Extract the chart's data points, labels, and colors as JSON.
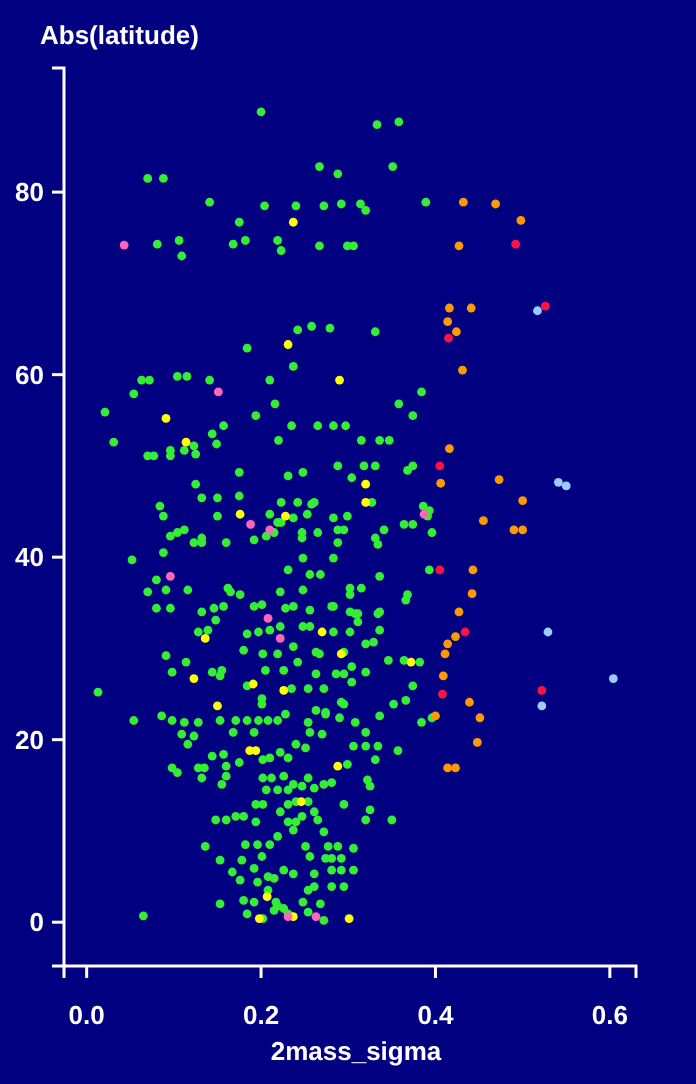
{
  "chart_data": {
    "type": "scatter",
    "title": "Abs(latitude)",
    "xlabel": "2mass_sigma",
    "xlim": [
      -0.026,
      0.63
    ],
    "ylim": [
      -4.8,
      93.6
    ],
    "xticks": [
      {
        "value": 0,
        "label": "0.0"
      },
      {
        "value": 0.2,
        "label": "0.2"
      },
      {
        "value": 0.4,
        "label": "0.4"
      },
      {
        "value": 0.6,
        "label": "0.6"
      }
    ],
    "yticks": [
      0,
      20,
      40,
      60,
      80
    ],
    "marker": "circle",
    "series": [
      {
        "color": "#33ee33",
        "x": [
          0.2,
          0.333,
          0.358,
          0.267,
          0.288,
          0.351,
          0.07,
          0.088,
          0.141,
          0.204,
          0.24,
          0.272,
          0.292,
          0.314,
          0.32,
          0.389,
          0.175,
          0.081,
          0.106,
          0.109,
          0.168,
          0.182,
          0.219,
          0.223,
          0.267,
          0.299,
          0.306,
          0.242,
          0.258,
          0.279,
          0.331,
          0.184,
          0.237,
          0.063,
          0.072,
          0.104,
          0.115,
          0.141,
          0.21,
          0.054,
          0.384,
          0.021,
          0.216,
          0.358,
          0.194,
          0.374,
          0.157,
          0.235,
          0.265,
          0.283,
          0.297,
          0.031,
          0.144,
          0.149,
          0.22,
          0.315,
          0.336,
          0.347,
          0.07,
          0.077,
          0.096,
          0.096,
          0.112,
          0.123,
          0.125,
          0.288,
          0.318,
          0.331,
          0.368,
          0.374,
          0.175,
          0.231,
          0.248,
          0.304,
          0.125,
          0.132,
          0.15,
          0.175,
          0.084,
          0.088,
          0.223,
          0.242,
          0.258,
          0.261,
          0.15,
          0.21,
          0.223,
          0.237,
          0.253,
          0.283,
          0.299,
          0.327,
          0.386,
          0.393,
          0.391,
          0.096,
          0.104,
          0.112,
          0.123,
          0.132,
          0.132,
          0.16,
          0.192,
          0.206,
          0.215,
          0.219,
          0.247,
          0.247,
          0.265,
          0.288,
          0.295,
          0.288,
          0.331,
          0.334,
          0.341,
          0.364,
          0.374,
          0.396,
          0.052,
          0.088,
          0.248,
          0.283,
          0.393,
          0.08,
          0.07,
          0.091,
          0.116,
          0.162,
          0.176,
          0.165,
          0.192,
          0.201,
          0.222,
          0.231,
          0.256,
          0.268,
          0.248,
          0.302,
          0.315,
          0.302,
          0.283,
          0.336,
          0.368,
          0.366,
          0.08,
          0.096,
          0.132,
          0.146,
          0.157,
          0.256,
          0.308,
          0.336,
          0.228,
          0.237,
          0.281,
          0.302,
          0.311,
          0.334,
          0.128,
          0.139,
          0.148,
          0.184,
          0.197,
          0.21,
          0.222,
          0.248,
          0.256,
          0.283,
          0.302,
          0.311,
          0.336,
          0.32,
          0.329,
          0.382,
          0.346,
          0.364,
          0.091,
          0.114,
          0.18,
          0.202,
          0.219,
          0.237,
          0.263,
          0.267,
          0.295,
          0.098,
          0.144,
          0.155,
          0.153,
          0.205,
          0.226,
          0.242,
          0.263,
          0.286,
          0.295,
          0.304,
          0.304,
          0.32,
          0.374,
          0.013,
          0.184,
          0.201,
          0.201,
          0.235,
          0.254,
          0.272,
          0.263,
          0.274,
          0.292,
          0.295,
          0.352,
          0.366,
          0.054,
          0.086,
          0.098,
          0.112,
          0.128,
          0.153,
          0.171,
          0.184,
          0.197,
          0.208,
          0.219,
          0.228,
          0.254,
          0.274,
          0.29,
          0.308,
          0.336,
          0.384,
          0.396,
          0.109,
          0.123,
          0.168,
          0.192,
          0.256,
          0.27,
          0.32,
          0.116,
          0.144,
          0.157,
          0.175,
          0.202,
          0.21,
          0.222,
          0.231,
          0.24,
          0.251,
          0.306,
          0.32,
          0.334,
          0.357,
          0.299,
          0.331,
          0.098,
          0.104,
          0.128,
          0.135,
          0.16,
          0.16,
          0.155,
          0.202,
          0.212,
          0.226,
          0.237,
          0.254,
          0.272,
          0.281,
          0.206,
          0.219,
          0.231,
          0.247,
          0.261,
          0.322,
          0.325,
          0.132,
          0.194,
          0.202,
          0.231,
          0.24,
          0.254,
          0.295,
          0.325,
          0.148,
          0.16,
          0.171,
          0.18,
          0.194,
          0.222,
          0.231,
          0.24,
          0.247,
          0.261,
          0.265,
          0.32,
          0.35,
          0.219,
          0.237,
          0.272,
          0.136,
          0.182,
          0.196,
          0.21,
          0.251,
          0.277,
          0.288,
          0.306,
          0.153,
          0.178,
          0.201,
          0.256,
          0.274,
          0.281,
          0.292,
          0.167,
          0.192,
          0.208,
          0.226,
          0.237,
          0.261,
          0.281,
          0.292,
          0.306,
          0.176,
          0.196,
          0.215,
          0.261,
          0.281,
          0.295,
          0.208,
          0.254,
          0.153,
          0.18,
          0.192,
          0.217,
          0.248,
          0.268,
          0.065,
          0.184,
          0.202,
          0.215,
          0.219,
          0.226,
          0.231,
          0.254,
          0.272
        ],
        "values": [
          88.8,
          87.4,
          87.7,
          82.8,
          82,
          82.8,
          81.5,
          81.5,
          78.9,
          78.5,
          78.5,
          78.5,
          78.7,
          78.7,
          78,
          78.9,
          76.7,
          74.3,
          74.7,
          73,
          74.3,
          74.7,
          74.7,
          73.6,
          74.1,
          74.1,
          74.1,
          64.9,
          65.3,
          65.1,
          64.7,
          62.9,
          60.9,
          59.4,
          59.4,
          59.8,
          59.8,
          59.4,
          59.4,
          57.9,
          58.1,
          55.9,
          56.8,
          56.8,
          55.5,
          55.5,
          54.4,
          54.4,
          54.4,
          54.4,
          54.4,
          52.6,
          53.5,
          52.4,
          52.8,
          52.8,
          52.8,
          52.8,
          51.1,
          51.1,
          51.7,
          51.1,
          51.7,
          52.2,
          51.3,
          50,
          50,
          50,
          49.5,
          50,
          49.3,
          48.9,
          49.3,
          48.7,
          48,
          46.5,
          46.5,
          46.7,
          45.6,
          44.5,
          46,
          46,
          45.8,
          46,
          44.5,
          44.7,
          43.8,
          44.3,
          44.7,
          44.3,
          44.5,
          46,
          45.6,
          45.1,
          44.5,
          42.3,
          42.7,
          43,
          41.6,
          42.1,
          41.6,
          41.6,
          41.9,
          42.3,
          42.7,
          43.8,
          42.7,
          42.1,
          42.7,
          43,
          43,
          41.6,
          42.1,
          41.4,
          43,
          43.6,
          43.6,
          42.7,
          39.7,
          40.5,
          39.9,
          39.9,
          38.6,
          37.5,
          36.2,
          36.4,
          36.4,
          36.6,
          35.9,
          36.2,
          34.6,
          34.8,
          36.2,
          38.6,
          38.1,
          38.1,
          36.4,
          36.6,
          36.6,
          35.9,
          34.6,
          37.9,
          35.9,
          35.3,
          34.4,
          34.4,
          34,
          34.4,
          34.6,
          34.2,
          33.8,
          34,
          34.4,
          34.6,
          34.6,
          34,
          33.8,
          33.8,
          31.8,
          32,
          33.1,
          31.6,
          31.8,
          32,
          32.4,
          32.4,
          32.4,
          31.8,
          31.8,
          32.9,
          32,
          30.5,
          30.7,
          28.5,
          28.7,
          28.7,
          29.2,
          28.5,
          29.8,
          29.4,
          29.4,
          30.2,
          29.6,
          29.4,
          29.6,
          27.4,
          27.4,
          27.6,
          27,
          27.6,
          27.6,
          28.5,
          27.2,
          27.2,
          27.2,
          28,
          26.3,
          27.4,
          25.9,
          25.2,
          25.9,
          24.5,
          23.9,
          25.6,
          25.6,
          25.6,
          23.2,
          23,
          24.1,
          23.9,
          23.9,
          24.3,
          22.1,
          22.6,
          22.1,
          21.9,
          21.9,
          22.1,
          22.1,
          22.1,
          22.1,
          22.1,
          22.1,
          22.8,
          21.9,
          22.8,
          22.4,
          21.9,
          22.6,
          21.9,
          22.4,
          20.6,
          20.4,
          20.8,
          20.8,
          20.8,
          20.6,
          20.8,
          19.5,
          18.2,
          18.4,
          17.5,
          17.8,
          18,
          18.6,
          18,
          19.5,
          19.1,
          19.3,
          19.3,
          19.3,
          18.8,
          17.3,
          17.8,
          16.9,
          16.4,
          16.9,
          16.9,
          17.1,
          16,
          15.1,
          15.8,
          15.8,
          16,
          15.1,
          15.8,
          15.1,
          15.3,
          14.5,
          14.5,
          14.5,
          14.9,
          14.7,
          15.6,
          14.9,
          15.8,
          12.9,
          12.9,
          12.9,
          13.2,
          13.2,
          12.9,
          12.3,
          11.2,
          11.2,
          11.6,
          11.6,
          11,
          12.1,
          11,
          11,
          11.6,
          12.1,
          11.2,
          11.2,
          11.2,
          9.4,
          10.1,
          9.9,
          8.3,
          8.5,
          8.5,
          8.5,
          8.3,
          8.3,
          8.3,
          8.1,
          6.8,
          6.8,
          7.2,
          7.2,
          7,
          7,
          7,
          5.5,
          5.9,
          5,
          5.7,
          5.3,
          5.3,
          5.7,
          5.7,
          5.7,
          4.6,
          4.4,
          4.8,
          3.9,
          3.9,
          3.9,
          3.5,
          3.5,
          2,
          2.4,
          2.2,
          2.2,
          2.2,
          2,
          0.7,
          0.9,
          0.4,
          1.3,
          1.8,
          1.5,
          0.9,
          1.1,
          0.2
        ]
      },
      {
        "color": "#ffff00",
        "x": [
          0.237,
          0.231,
          0.29,
          0.091,
          0.114,
          0.32,
          0.32,
          0.176,
          0.228,
          0.27,
          0.136,
          0.292,
          0.372,
          0.123,
          0.191,
          0.226,
          0.15,
          0.187,
          0.194,
          0.288,
          0.246,
          0.207,
          0.198,
          0.237,
          0.301
        ],
        "values": [
          76.7,
          63.3,
          59.4,
          55.2,
          52.6,
          48,
          46,
          44.7,
          44.5,
          31.8,
          31.1,
          29.4,
          28.5,
          26.7,
          26.1,
          25.4,
          23.7,
          18.8,
          18.8,
          17.1,
          13.2,
          2.8,
          0.4,
          0.6,
          0.4
        ]
      },
      {
        "color": "#ff9900",
        "x": [
          0.432,
          0.469,
          0.498,
          0.427,
          0.416,
          0.441,
          0.414,
          0.424,
          0.431,
          0.416,
          0.406,
          0.473,
          0.5,
          0.455,
          0.49,
          0.5,
          0.443,
          0.442,
          0.427,
          0.423,
          0.414,
          0.411,
          0.409,
          0.439,
          0.451,
          0.4,
          0.448,
          0.414,
          0.423
        ],
        "values": [
          78.9,
          78.7,
          76.9,
          74.1,
          67.3,
          67.3,
          65.8,
          64.7,
          60.5,
          51.9,
          48.1,
          48.5,
          46.2,
          44,
          43,
          43,
          38.6,
          36,
          34,
          31.3,
          30.5,
          29.4,
          27,
          24.1,
          22.4,
          22.6,
          19.7,
          16.9,
          16.9
        ]
      },
      {
        "color": "#ff1144",
        "x": [
          0.492,
          0.526,
          0.415,
          0.405,
          0.405,
          0.434,
          0.408,
          0.522
        ],
        "values": [
          74.3,
          67.5,
          64,
          50,
          38.6,
          31.8,
          25,
          25.4
        ]
      },
      {
        "color": "#ff66bb",
        "x": [
          0.043,
          0.151,
          0.188,
          0.096,
          0.208,
          0.387,
          0.21,
          0.222,
          0.231,
          0.263
        ],
        "values": [
          74.2,
          58.1,
          43.6,
          37.9,
          33.3,
          44.7,
          43,
          31.1,
          0.6,
          0.6
        ]
      },
      {
        "color": "#99ccff",
        "x": [
          0.517,
          0.541,
          0.55,
          0.529,
          0.604,
          0.522
        ],
        "values": [
          67,
          48.2,
          47.8,
          31.8,
          26.7,
          23.7
        ]
      }
    ]
  }
}
